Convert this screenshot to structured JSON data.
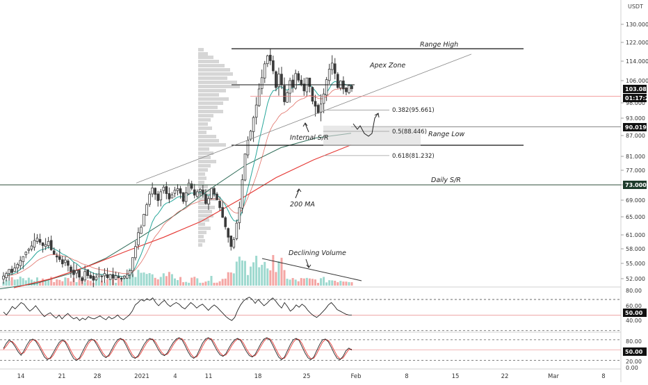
{
  "colors": {
    "background": "#ffffff",
    "candle_up": "#26a69a",
    "candle_down": "#ef5350",
    "candle_neutral": "#3a3a3a",
    "ma_200": "#2e6b57",
    "ma_red": "#e53935",
    "ma_teal": "#26a69a",
    "line_black": "#111111",
    "volume_profile": "#c8c8c8",
    "osc_line": "#222222",
    "stoch_k": "#222222",
    "stoch_d": "#e53935",
    "label_black": "#111111",
    "label_dark_green": "#1e3b2c"
  },
  "chart_data": [
    {
      "type": "candlestick",
      "title": "",
      "currency": "USDT",
      "y_scale": "linear",
      "ylim": [
        48.5,
        136
      ],
      "y_ticks": [
        "130.000",
        "122.000",
        "114.000",
        "106.000",
        "98.000",
        "93.000",
        "87.000",
        "81.000",
        "77.000",
        "73.000",
        "69.000",
        "65.000",
        "61.000",
        "58.000",
        "55.000",
        "52.000"
      ],
      "x_ticks": [
        "14",
        "21",
        "28",
        "2021",
        "4",
        "11",
        "18",
        "25",
        "Feb",
        "8",
        "15",
        "22",
        "Mar",
        "8"
      ],
      "price_labels": [
        {
          "value": "103.086",
          "style": "last-price"
        },
        {
          "value": "01:17:26",
          "style": "countdown"
        },
        {
          "value": "90.019",
          "style": "level"
        },
        {
          "value": "73.000",
          "style": "level"
        }
      ],
      "levels": [
        {
          "name": "Range High",
          "price": 119.3
        },
        {
          "name": "Range Low",
          "price": 84.2
        },
        {
          "name": "Daily S/R",
          "price": 73.0
        }
      ],
      "fib_levels": [
        {
          "label": "0.382(95.661)",
          "price": 95.661
        },
        {
          "label": "0.5(88.446)",
          "price": 88.446
        },
        {
          "label": "0.618(81.232)",
          "price": 81.232
        }
      ],
      "annotations": [
        "Range High",
        "Apex Zone",
        "Internal S/R",
        "Range Low",
        "Daily S/R",
        "200 MA",
        "Declining Volume"
      ],
      "series": [
        {
          "name": "price",
          "close": [
            52.5,
            53.0,
            53.8,
            53.2,
            54.1,
            54.8,
            55.6,
            56.4,
            57.3,
            57.9,
            58.6,
            59.8,
            60.3,
            59.4,
            58.7,
            58.9,
            59.6,
            57.8,
            56.9,
            56.3,
            55.8,
            54.9,
            55.7,
            54.6,
            53.4,
            52.8,
            53.6,
            52.3,
            51.6,
            53.4,
            52.6,
            52.1,
            51.7,
            52.3,
            52.9,
            52.4,
            53.0,
            52.2,
            52.8,
            52.1,
            52.6,
            52.2,
            51.9,
            52.5,
            52.8,
            53.6,
            56.2,
            58.5,
            61.5,
            62.7,
            65.6,
            67.9,
            70.6,
            72.2,
            70.5,
            68.9,
            71.2,
            72.4,
            70.7,
            69.3,
            70.4,
            71.6,
            72.0,
            70.8,
            68.7,
            70.9,
            73.5,
            72.1,
            70.3,
            71.2,
            71.8,
            70.6,
            68.2,
            69.4,
            72.1,
            70.6,
            69.1,
            67.2,
            64.9,
            62.8,
            60.5,
            58.5,
            60.0,
            63.6,
            67.2,
            74.4,
            81.7,
            85.6,
            88.5,
            93.2,
            97.3,
            103.0,
            107.2,
            112.9,
            116.3,
            114.2,
            110.0,
            103.5,
            108.7,
            104.5,
            98.4,
            101.6,
            106.0,
            103.6,
            108.9,
            106.2,
            104.7,
            102.3,
            107.1,
            103.9,
            98.6,
            96.9,
            94.6,
            97.6,
            101.2,
            106.4,
            110.7,
            113.2,
            109.0,
            103.5,
            105.9,
            103.0,
            102.0,
            104.2,
            103.086
          ]
        },
        {
          "name": "200 MA",
          "values": [
            50.0,
            51.0,
            53.0,
            56.0,
            60.5,
            65.5,
            72.0,
            78.5,
            83.5,
            86.3,
            87.8
          ]
        },
        {
          "name": "red MA",
          "values": [
            50.2,
            52.0,
            54.5,
            57.5,
            60.5,
            64.0,
            69.0,
            75.0,
            80.0,
            84.3
          ]
        }
      ]
    },
    {
      "type": "line",
      "title": "",
      "y_ticks": [
        "80.00",
        "60.00",
        "50.00",
        "40.00"
      ],
      "value_label": "50.00",
      "series": [
        {
          "name": "",
          "values": [
            54,
            50,
            55,
            61,
            58,
            62,
            66,
            64,
            59,
            55,
            58,
            62,
            57,
            52,
            48,
            51,
            53,
            49,
            46,
            50,
            45,
            49,
            52,
            48,
            45,
            47,
            43,
            46,
            44,
            48,
            46,
            45,
            47,
            49,
            46,
            44,
            48,
            45,
            47,
            50,
            46,
            44,
            47,
            50,
            55,
            63,
            66,
            70,
            68,
            71,
            69,
            72,
            66,
            62,
            66,
            69,
            64,
            61,
            64,
            66,
            64,
            60,
            58,
            62,
            66,
            63,
            59,
            62,
            64,
            60,
            56,
            60,
            63,
            60,
            56,
            52,
            48,
            45,
            43,
            47,
            56,
            63,
            68,
            71,
            73,
            70,
            65,
            70,
            66,
            62,
            65,
            69,
            72,
            68,
            63,
            59,
            66,
            61,
            55,
            58,
            63,
            60,
            64,
            61,
            56,
            52,
            49,
            47,
            50,
            54,
            58,
            63,
            66,
            62,
            57,
            55,
            53,
            51,
            50,
            50
          ]
        }
      ]
    },
    {
      "type": "line",
      "title": "",
      "y_ticks": [
        "80.00",
        "50.00",
        "20.00",
        "0.00"
      ],
      "value_label": "50.00",
      "series": [
        {
          "name": "",
          "values": [
            55,
            70,
            80,
            72,
            60,
            45,
            35,
            48,
            65,
            78,
            82,
            76,
            62,
            46,
            30,
            22,
            28,
            42,
            58,
            72,
            80,
            74,
            58,
            40,
            25,
            20,
            28,
            45,
            62,
            76,
            82,
            78,
            64,
            48,
            34,
            28,
            36,
            52,
            68,
            80,
            84,
            78,
            62,
            44,
            30,
            26,
            34,
            50,
            66,
            78,
            84,
            80,
            66,
            50,
            38,
            34,
            42,
            58,
            72,
            82,
            86,
            80,
            64,
            46,
            32,
            26,
            34,
            52,
            70,
            82,
            86,
            80,
            64,
            48,
            36,
            32,
            40,
            56,
            70,
            80,
            84,
            78,
            62,
            46,
            34,
            30,
            38,
            54,
            70,
            82,
            86,
            80,
            64,
            46,
            30,
            22,
            30,
            48,
            66,
            80,
            84,
            78,
            60,
            42,
            28,
            22,
            30,
            48,
            66,
            80,
            82,
            74,
            58,
            40,
            26,
            22,
            32,
            48,
            56,
            50
          ]
        },
        {
          "name": "",
          "values": [
            52,
            62,
            74,
            75,
            66,
            53,
            40,
            42,
            56,
            71,
            80,
            79,
            69,
            54,
            38,
            26,
            25,
            35,
            50,
            65,
            76,
            77,
            66,
            49,
            33,
            23,
            24,
            36,
            53,
            69,
            79,
            80,
            71,
            56,
            41,
            31,
            32,
            44,
            60,
            74,
            82,
            81,
            70,
            53,
            37,
            28,
            30,
            42,
            58,
            72,
            81,
            82,
            73,
            58,
            44,
            36,
            38,
            50,
            65,
            77,
            84,
            83,
            72,
            55,
            39,
            29,
            30,
            43,
            61,
            76,
            84,
            83,
            72,
            56,
            42,
            34,
            36,
            48,
            63,
            75,
            82,
            81,
            70,
            54,
            40,
            32,
            34,
            46,
            62,
            76,
            84,
            83,
            72,
            55,
            38,
            26,
            26,
            39,
            57,
            73,
            82,
            81,
            69,
            51,
            35,
            25,
            26,
            39,
            57,
            73,
            81,
            78,
            66,
            49,
            33,
            24,
            27,
            40,
            52,
            53
          ]
        }
      ]
    }
  ]
}
